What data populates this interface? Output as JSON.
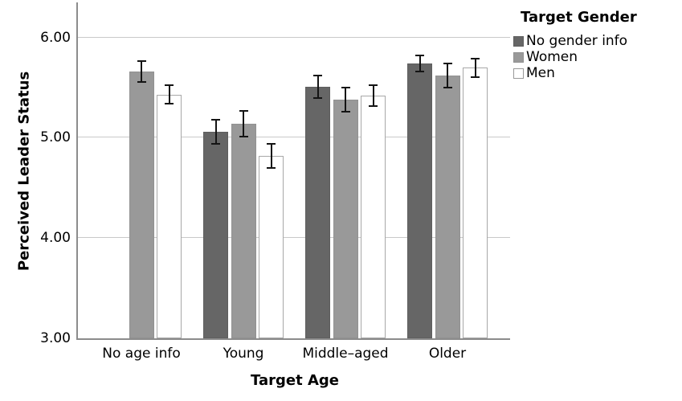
{
  "chart_data": {
    "type": "bar",
    "title": "",
    "xlabel": "Target Age",
    "ylabel": "Perceived Leader Status",
    "legend_title": "Target Gender",
    "legend_position": "top-right",
    "grid": "horizontal",
    "ylim": [
      3.0,
      6.35
    ],
    "yticks": [
      "3.00",
      "4.00",
      "5.00",
      "6.00"
    ],
    "categories": [
      "No age info",
      "Young",
      "Middle–aged",
      "Older"
    ],
    "series": [
      {
        "name": "No gender info",
        "fill": "#666666",
        "border": "#5e5e5e",
        "values": [
          null,
          5.06,
          5.51,
          5.74
        ],
        "errors": [
          null,
          0.13,
          0.12,
          0.09
        ]
      },
      {
        "name": "Women",
        "fill": "#999999",
        "border": "#919191",
        "values": [
          5.66,
          5.14,
          5.38,
          5.62
        ],
        "errors": [
          0.11,
          0.14,
          0.13,
          0.13
        ]
      },
      {
        "name": "Men",
        "fill": "#ffffff",
        "border": "#a8a8a8",
        "values": [
          5.43,
          4.82,
          5.42,
          5.7
        ],
        "errors": [
          0.1,
          0.13,
          0.11,
          0.1
        ]
      }
    ],
    "error_bars": true,
    "error_bar_color": "#141414",
    "axis_color": "#8c8c8c",
    "gridline_color": "#c9c9c9"
  }
}
